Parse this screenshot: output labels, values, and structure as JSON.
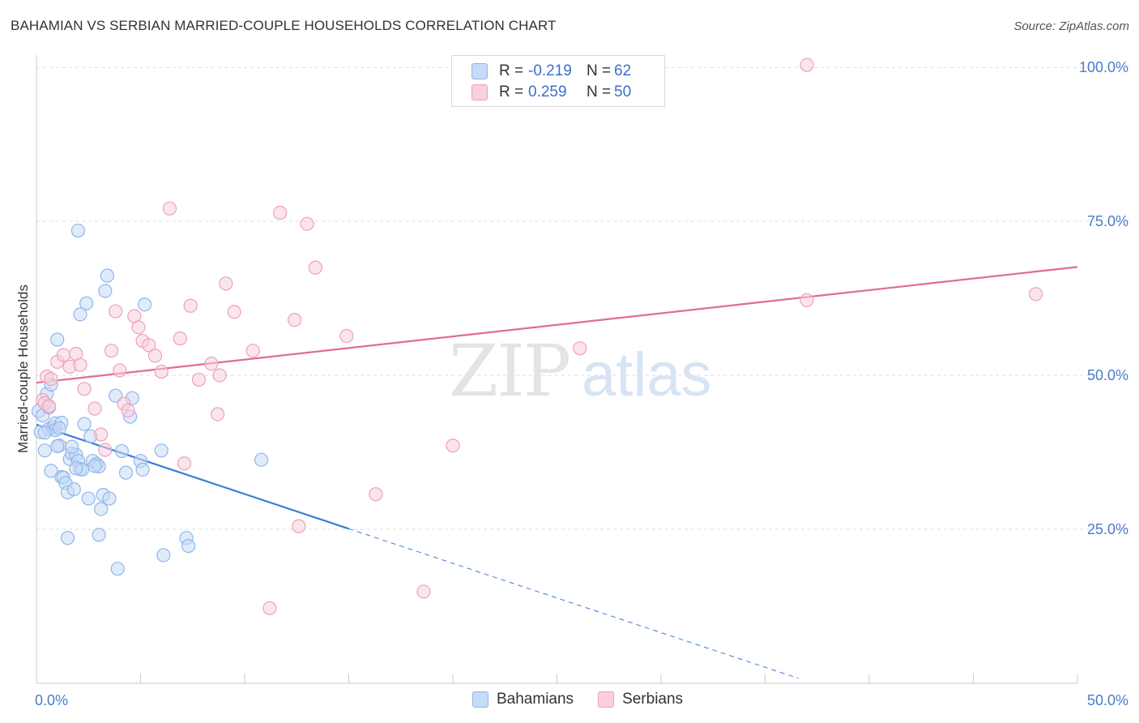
{
  "header": {
    "title": "BAHAMIAN VS SERBIAN MARRIED-COUPLE HOUSEHOLDS CORRELATION CHART",
    "source": "Source: ZipAtlas.com"
  },
  "watermark": {
    "part1": "ZIP",
    "part2": "atlas"
  },
  "legend": {
    "r_label": "R =",
    "n_label": "N =",
    "rows": [
      {
        "name": "Bahamians",
        "r": "-0.219",
        "n": "62",
        "color": "#8fb6ea",
        "fill": "#c7dbf6"
      },
      {
        "name": "Serbians",
        "r": "0.259",
        "n": "50",
        "color": "#ef9fba",
        "fill": "#f8d0de"
      }
    ]
  },
  "chart_data": {
    "type": "scatter",
    "title": "BAHAMIAN VS SERBIAN MARRIED-COUPLE HOUSEHOLDS CORRELATION CHART",
    "xlabel": "",
    "ylabel": "Married-couple Households",
    "xlim": [
      0,
      50
    ],
    "ylim": [
      0,
      102
    ],
    "x_tick_labels": [
      {
        "value": 0,
        "label": "0.0%"
      },
      {
        "value": 50,
        "label": "50.0%"
      }
    ],
    "y_tick_labels": [
      {
        "value": 25,
        "label": "25.0%"
      },
      {
        "value": 50,
        "label": "50.0%"
      },
      {
        "value": 75,
        "label": "75.0%"
      },
      {
        "value": 100,
        "label": "100.0%"
      }
    ],
    "gridlines": [
      25,
      50,
      75,
      100
    ],
    "series": [
      {
        "name": "Bahamians",
        "color": "#3b7dd8",
        "marker_stroke": "#8fb6ea",
        "marker_fill": "#c7dbf6",
        "trend": {
          "x0": 0,
          "y0": 42.0,
          "x1": 15,
          "y1": 25.1,
          "dash_to_x": 36.6,
          "dash_to_y": 0.8
        },
        "points": [
          [
            0.1,
            44.2
          ],
          [
            0.2,
            40.8
          ],
          [
            0.3,
            43.5
          ],
          [
            0.4,
            37.8
          ],
          [
            0.5,
            47.0
          ],
          [
            0.6,
            41.3
          ],
          [
            0.7,
            48.5
          ],
          [
            0.8,
            41.6
          ],
          [
            0.9,
            42.2
          ],
          [
            1.0,
            55.8
          ],
          [
            1.1,
            38.6
          ],
          [
            1.2,
            33.5
          ],
          [
            1.3,
            33.4
          ],
          [
            1.4,
            32.5
          ],
          [
            1.5,
            31.0
          ],
          [
            1.6,
            36.4
          ],
          [
            1.7,
            37.3
          ],
          [
            1.8,
            31.5
          ],
          [
            1.9,
            37.1
          ],
          [
            2.0,
            36.1
          ],
          [
            2.1,
            34.8
          ],
          [
            1.5,
            23.6
          ],
          [
            1.7,
            38.4
          ],
          [
            1.0,
            38.5
          ],
          [
            2.0,
            73.5
          ],
          [
            2.1,
            59.9
          ],
          [
            2.3,
            42.1
          ],
          [
            2.4,
            61.7
          ],
          [
            2.2,
            34.7
          ],
          [
            2.5,
            30.0
          ],
          [
            2.6,
            40.1
          ],
          [
            2.7,
            36.1
          ],
          [
            2.9,
            35.6
          ],
          [
            3.0,
            35.2
          ],
          [
            3.1,
            28.3
          ],
          [
            3.2,
            30.6
          ],
          [
            3.3,
            63.7
          ],
          [
            3.4,
            66.2
          ],
          [
            3.5,
            30.0
          ],
          [
            2.8,
            35.3
          ],
          [
            3.0,
            24.1
          ],
          [
            3.8,
            46.7
          ],
          [
            3.9,
            18.6
          ],
          [
            4.1,
            37.7
          ],
          [
            4.3,
            34.2
          ],
          [
            4.5,
            43.3
          ],
          [
            4.6,
            46.3
          ],
          [
            5.0,
            36.1
          ],
          [
            5.1,
            34.7
          ],
          [
            5.2,
            61.5
          ],
          [
            6.0,
            37.8
          ],
          [
            6.1,
            20.8
          ],
          [
            7.2,
            23.6
          ],
          [
            7.3,
            22.3
          ],
          [
            10.8,
            36.3
          ],
          [
            0.9,
            41.1
          ],
          [
            0.4,
            40.7
          ],
          [
            0.7,
            34.5
          ],
          [
            1.2,
            42.3
          ],
          [
            1.9,
            34.9
          ],
          [
            0.6,
            44.8
          ],
          [
            1.1,
            41.4
          ]
        ]
      },
      {
        "name": "Serbians",
        "color": "#e06b95",
        "marker_stroke": "#ef9fba",
        "marker_fill": "#f8d0de",
        "trend": {
          "x0": 0,
          "y0": 48.8,
          "x1": 50,
          "y1": 67.6
        },
        "points": [
          [
            0.3,
            46.0
          ],
          [
            0.4,
            45.5
          ],
          [
            0.5,
            49.8
          ],
          [
            0.7,
            49.4
          ],
          [
            1.0,
            52.2
          ],
          [
            1.3,
            53.3
          ],
          [
            1.6,
            51.4
          ],
          [
            1.9,
            53.5
          ],
          [
            2.1,
            51.7
          ],
          [
            2.3,
            47.8
          ],
          [
            2.8,
            44.6
          ],
          [
            3.1,
            40.4
          ],
          [
            3.3,
            37.9
          ],
          [
            3.6,
            54.0
          ],
          [
            3.8,
            60.4
          ],
          [
            4.0,
            50.8
          ],
          [
            4.2,
            45.4
          ],
          [
            4.4,
            44.3
          ],
          [
            4.7,
            59.6
          ],
          [
            4.9,
            57.8
          ],
          [
            5.1,
            55.6
          ],
          [
            5.4,
            54.9
          ],
          [
            5.7,
            53.2
          ],
          [
            6.0,
            50.6
          ],
          [
            6.4,
            77.1
          ],
          [
            6.9,
            56.0
          ],
          [
            7.1,
            35.7
          ],
          [
            7.4,
            61.3
          ],
          [
            7.8,
            49.3
          ],
          [
            8.4,
            51.9
          ],
          [
            8.7,
            43.7
          ],
          [
            8.8,
            50.0
          ],
          [
            9.1,
            64.9
          ],
          [
            9.5,
            60.3
          ],
          [
            10.4,
            54.0
          ],
          [
            11.2,
            12.2
          ],
          [
            11.7,
            76.4
          ],
          [
            12.4,
            59.0
          ],
          [
            12.6,
            25.5
          ],
          [
            13.0,
            74.6
          ],
          [
            13.4,
            67.5
          ],
          [
            14.9,
            56.4
          ],
          [
            16.3,
            30.7
          ],
          [
            18.6,
            14.9
          ],
          [
            20.0,
            38.6
          ],
          [
            26.1,
            54.4
          ],
          [
            37.0,
            100.4
          ],
          [
            37.0,
            62.2
          ],
          [
            48.0,
            63.2
          ],
          [
            0.6,
            45.0
          ]
        ]
      }
    ]
  }
}
